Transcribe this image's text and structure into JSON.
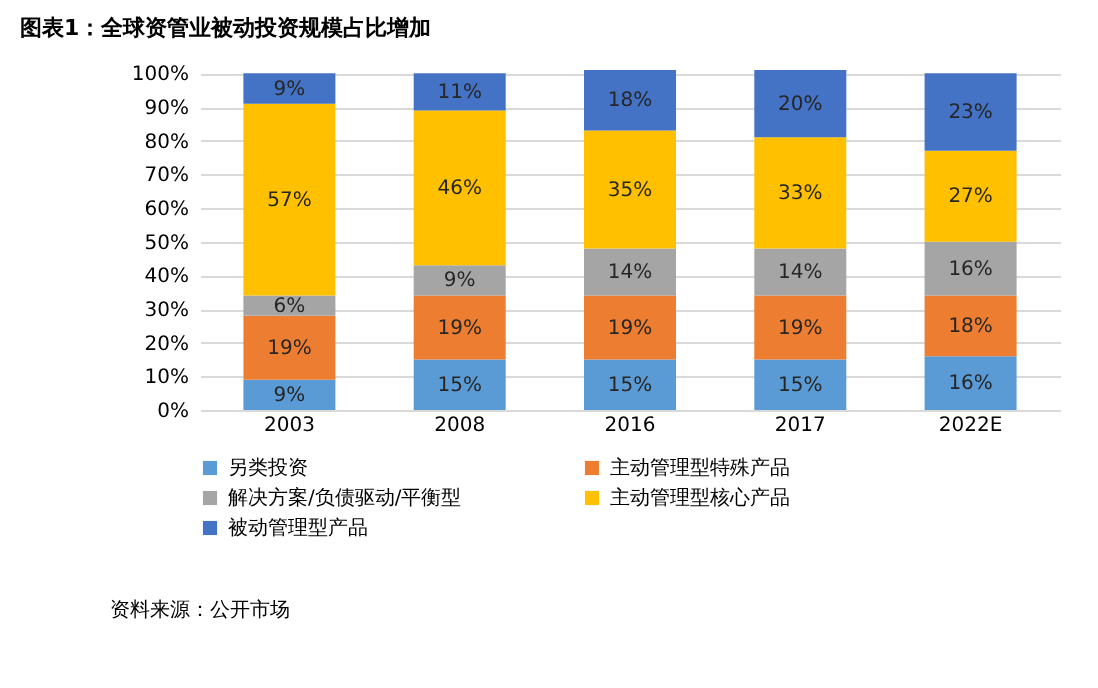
{
  "chart_data": {
    "type": "bar",
    "stacked": true,
    "title": "图表1：全球资管业被动投资规模占比增加",
    "categories": [
      "2003",
      "2008",
      "2016",
      "2017",
      "2022E"
    ],
    "series": [
      {
        "name": "另类投资",
        "color": "#5b9bd5",
        "values": [
          9,
          15,
          15,
          15,
          16
        ],
        "value_labels": [
          "9%",
          "15%",
          "15%",
          "15%",
          "16%"
        ]
      },
      {
        "name": "主动管理型特殊产品",
        "color": "#ed7d31",
        "values": [
          19,
          19,
          19,
          19,
          18
        ],
        "value_labels": [
          "19%",
          "19%",
          "19%",
          "19%",
          "18%"
        ]
      },
      {
        "name": "解决方案/负债驱动/平衡型",
        "color": "#a5a5a5",
        "values": [
          6,
          9,
          14,
          14,
          16
        ],
        "value_labels": [
          "6%",
          "9%",
          "14%",
          "14%",
          "16%"
        ]
      },
      {
        "name": "主动管理型核心产品",
        "color": "#ffc000",
        "values": [
          57,
          46,
          35,
          33,
          27
        ],
        "value_labels": [
          "57%",
          "46%",
          "35%",
          "33%",
          "27%"
        ]
      },
      {
        "name": "被动管理型产品",
        "color": "#4472c4",
        "values": [
          9,
          11,
          18,
          20,
          23
        ],
        "value_labels": [
          "9%",
          "11%",
          "18%",
          "20%",
          "23%"
        ]
      }
    ],
    "ylim": [
      0,
      101
    ],
    "yticks": [
      {
        "value": 0,
        "label": "0%"
      },
      {
        "value": 10,
        "label": "10%"
      },
      {
        "value": 20,
        "label": "20%"
      },
      {
        "value": 30,
        "label": "30%"
      },
      {
        "value": 40,
        "label": "40%"
      },
      {
        "value": 50,
        "label": "50%"
      },
      {
        "value": 60,
        "label": "60%"
      },
      {
        "value": 70,
        "label": "70%"
      },
      {
        "value": 80,
        "label": "80%"
      },
      {
        "value": 90,
        "label": "90%"
      },
      {
        "value": 100,
        "label": "100%"
      }
    ],
    "grid": "y",
    "legend": "bottom",
    "annotations": [
      "资料来源：公开市场"
    ]
  }
}
